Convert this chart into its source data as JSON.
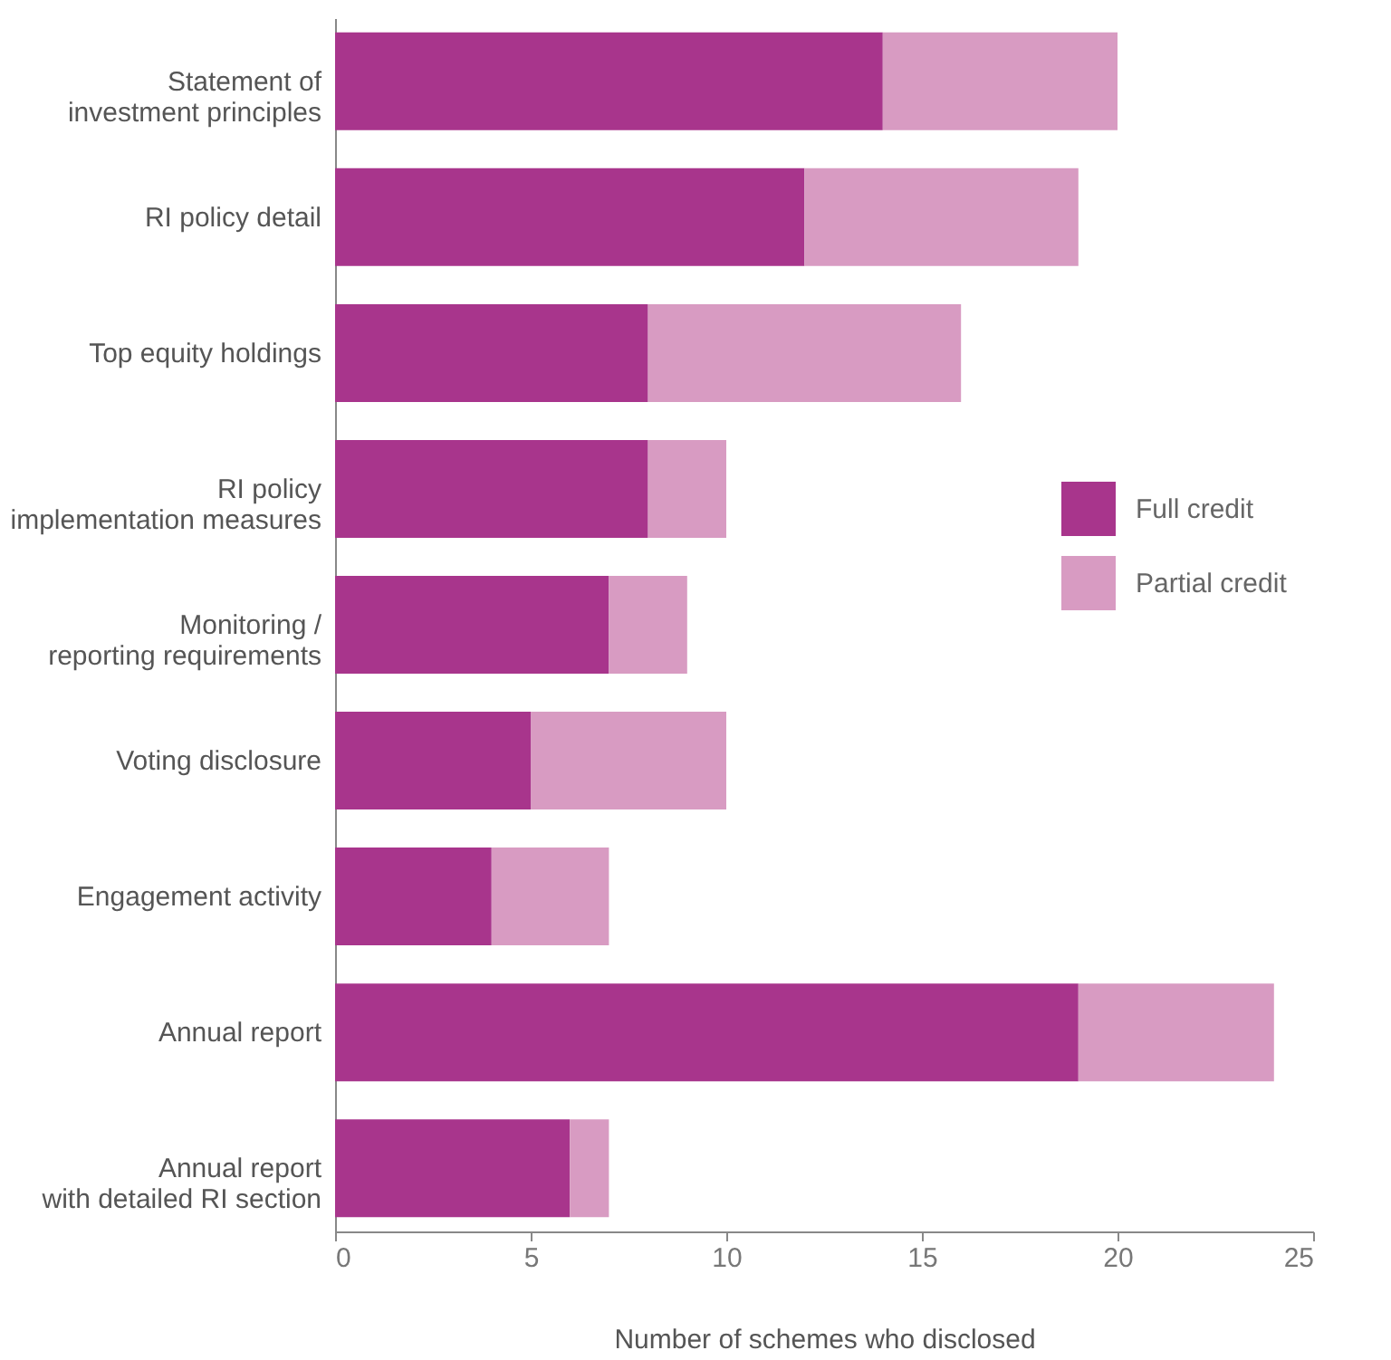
{
  "chart_data": {
    "type": "bar",
    "orientation": "horizontal",
    "stacked": true,
    "categories": [
      "Statement of\ninvestment principles",
      "RI policy detail",
      "Top equity holdings",
      "RI policy\nimplementation measures",
      "Monitoring /\nreporting requirements",
      "Voting disclosure",
      "Engagement activity",
      "Annual report",
      "Annual report\nwith detailed RI section"
    ],
    "series": [
      {
        "name": "Full credit",
        "color": "#a8358c",
        "values": [
          14,
          12,
          8,
          8,
          7,
          5,
          4,
          19,
          6
        ]
      },
      {
        "name": "Partial credit",
        "color": "#d89bc2",
        "values": [
          6,
          7,
          8,
          2,
          2,
          5,
          3,
          5,
          1
        ]
      }
    ],
    "xlabel": "Number of schemes who disclosed",
    "xlim": [
      0,
      25
    ],
    "xticks": [
      0,
      5,
      10,
      15,
      20,
      25
    ],
    "legend": "right",
    "grid": false
  }
}
